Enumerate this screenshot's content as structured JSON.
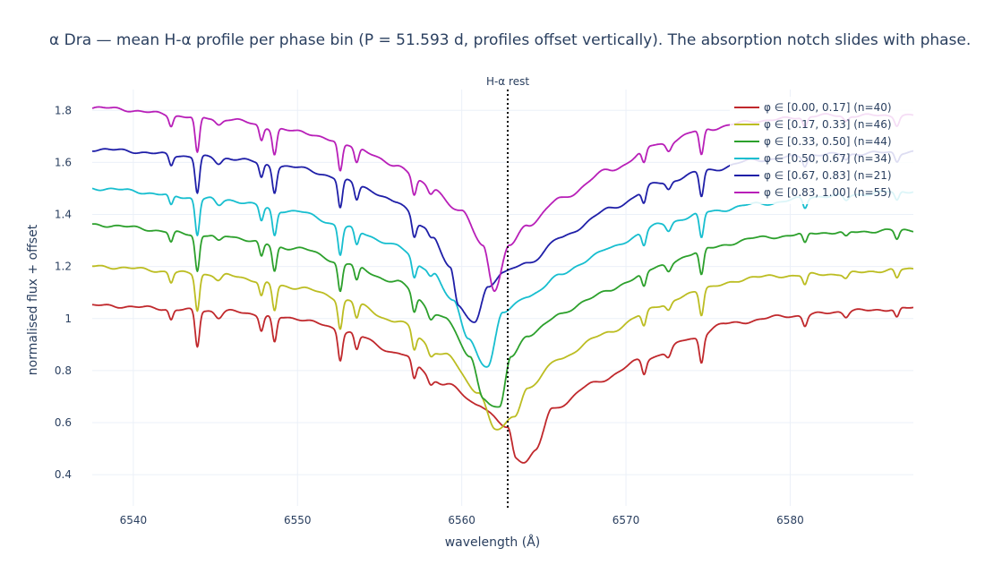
{
  "chart_data": {
    "type": "line",
    "title": "α Dra — mean H-α profile per phase bin (P = 51.593 d, profiles offset vertically). The absorption notch slides with phase.",
    "xlabel": "wavelength (Å)",
    "ylabel": "normalised flux + offset",
    "xlim": [
      6537.5,
      6587.5
    ],
    "ylim": [
      0.28,
      1.88
    ],
    "xticks": [
      6540,
      6550,
      6560,
      6570,
      6580
    ],
    "yticks": [
      0.4,
      0.6,
      0.8,
      1,
      1.2,
      1.4,
      1.6,
      1.8
    ],
    "xtick_labels": [
      "6540",
      "6550",
      "6560",
      "6570",
      "6580"
    ],
    "ytick_labels": [
      "0.4",
      "0.6",
      "0.8",
      "1",
      "1.2",
      "1.4",
      "1.6",
      "1.8"
    ],
    "grid": true,
    "legend_position": "top-right",
    "annotation": {
      "label": "H-α rest",
      "x": 6562.8,
      "style": "dotted vertical line"
    },
    "telluric_lines": [
      {
        "x": 6542.3,
        "depth": 0.04,
        "width": 0.12
      },
      {
        "x": 6543.9,
        "depth": 0.14,
        "width": 0.13
      },
      {
        "x": 6545.2,
        "depth": 0.025,
        "width": 0.2
      },
      {
        "x": 6547.8,
        "depth": 0.055,
        "width": 0.12
      },
      {
        "x": 6548.6,
        "depth": 0.1,
        "width": 0.13
      },
      {
        "x": 6552.6,
        "depth": 0.11,
        "width": 0.13
      },
      {
        "x": 6553.6,
        "depth": 0.06,
        "width": 0.13
      },
      {
        "x": 6557.1,
        "depth": 0.07,
        "width": 0.13
      },
      {
        "x": 6558.1,
        "depth": 0.03,
        "width": 0.15
      },
      {
        "x": 6571.1,
        "depth": 0.055,
        "width": 0.13
      },
      {
        "x": 6572.6,
        "depth": 0.03,
        "width": 0.15
      },
      {
        "x": 6574.6,
        "depth": 0.1,
        "width": 0.13
      },
      {
        "x": 6580.9,
        "depth": 0.04,
        "width": 0.13
      },
      {
        "x": 6583.4,
        "depth": 0.02,
        "width": 0.15
      },
      {
        "x": 6586.5,
        "depth": 0.035,
        "width": 0.13
      }
    ],
    "series": [
      {
        "name": "φ ∈ [0.00, 0.17]  (n=40)",
        "color": "#c0282c",
        "offset": 0.0,
        "min_x": 6563.9,
        "min_y": 0.36,
        "envelope": [
          [
            6537.5,
            1.05
          ],
          [
            6545,
            1.03
          ],
          [
            6550,
            1.0
          ],
          [
            6553,
            0.95
          ],
          [
            6556,
            0.87
          ],
          [
            6559,
            0.75
          ],
          [
            6561,
            0.67
          ],
          [
            6562.8,
            0.58
          ],
          [
            6563.3,
            0.47
          ],
          [
            6564.5,
            0.5
          ],
          [
            6565.5,
            0.65
          ],
          [
            6568,
            0.75
          ],
          [
            6571,
            0.84
          ],
          [
            6574,
            0.92
          ],
          [
            6576,
            0.98
          ],
          [
            6580,
            1.01
          ],
          [
            6584,
            1.03
          ],
          [
            6587.5,
            1.04
          ]
        ]
      },
      {
        "name": "φ ∈ [0.17, 0.33]  (n=46)",
        "color": "#bcbd22",
        "offset": 0.15,
        "min_x": 6562.5,
        "min_y": 0.53,
        "envelope": [
          [
            6537.5,
            1.2
          ],
          [
            6545,
            1.17
          ],
          [
            6550,
            1.12
          ],
          [
            6553,
            1.07
          ],
          [
            6556,
            0.99
          ],
          [
            6559,
            0.86
          ],
          [
            6561,
            0.72
          ],
          [
            6562,
            0.58
          ],
          [
            6563.2,
            0.63
          ],
          [
            6564,
            0.73
          ],
          [
            6566,
            0.85
          ],
          [
            6569,
            0.95
          ],
          [
            6572,
            1.05
          ],
          [
            6575,
            1.12
          ],
          [
            6578,
            1.16
          ],
          [
            6582,
            1.17
          ],
          [
            6587.5,
            1.19
          ]
        ]
      },
      {
        "name": "φ ∈ [0.33, 0.50]  (n=44)",
        "color": "#2ca02c",
        "offset": 0.3,
        "min_x": 6561.6,
        "min_y": 0.62,
        "envelope": [
          [
            6537.5,
            1.36
          ],
          [
            6545,
            1.32
          ],
          [
            6550,
            1.27
          ],
          [
            6553,
            1.21
          ],
          [
            6556,
            1.14
          ],
          [
            6559,
            1.0
          ],
          [
            6560.5,
            0.86
          ],
          [
            6561.3,
            0.7
          ],
          [
            6562.3,
            0.66
          ],
          [
            6563,
            0.86
          ],
          [
            6564,
            0.93
          ],
          [
            6566,
            1.02
          ],
          [
            6569,
            1.11
          ],
          [
            6572,
            1.2
          ],
          [
            6575,
            1.27
          ],
          [
            6578,
            1.31
          ],
          [
            6582,
            1.33
          ],
          [
            6587.5,
            1.34
          ]
        ]
      },
      {
        "name": "φ ∈ [0.50, 0.67]  (n=34)",
        "color": "#17becf",
        "offset": 0.45,
        "min_x": 6561.0,
        "min_y": 0.77,
        "envelope": [
          [
            6537.5,
            1.5
          ],
          [
            6545,
            1.46
          ],
          [
            6550,
            1.41
          ],
          [
            6553,
            1.35
          ],
          [
            6556,
            1.28
          ],
          [
            6558,
            1.19
          ],
          [
            6559.5,
            1.07
          ],
          [
            6560.4,
            0.93
          ],
          [
            6561.6,
            0.82
          ],
          [
            6562.5,
            1.03
          ],
          [
            6564,
            1.08
          ],
          [
            6566,
            1.17
          ],
          [
            6569,
            1.27
          ],
          [
            6572,
            1.36
          ],
          [
            6575,
            1.41
          ],
          [
            6578,
            1.44
          ],
          [
            6582,
            1.47
          ],
          [
            6587.5,
            1.49
          ]
        ]
      },
      {
        "name": "φ ∈ [0.67, 0.83]  (n=21)",
        "color": "#1f1fa8",
        "offset": 0.6,
        "min_x": 6560.2,
        "min_y": 0.93,
        "envelope": [
          [
            6537.5,
            1.65
          ],
          [
            6545,
            1.62
          ],
          [
            6550,
            1.58
          ],
          [
            6553,
            1.53
          ],
          [
            6556,
            1.45
          ],
          [
            6558,
            1.34
          ],
          [
            6559.3,
            1.2
          ],
          [
            6559.8,
            1.07
          ],
          [
            6560.8,
            0.99
          ],
          [
            6561.6,
            1.12
          ],
          [
            6562.5,
            1.18
          ],
          [
            6564,
            1.21
          ],
          [
            6566,
            1.31
          ],
          [
            6569,
            1.42
          ],
          [
            6572,
            1.52
          ],
          [
            6575,
            1.57
          ],
          [
            6578,
            1.61
          ],
          [
            6582,
            1.63
          ],
          [
            6587.5,
            1.64
          ]
        ]
      },
      {
        "name": "φ ∈ [0.83, 1.00]  (n=55)",
        "color": "#b81fb8",
        "offset": 0.75,
        "min_x": 6562.0,
        "min_y": 1.11,
        "envelope": [
          [
            6537.5,
            1.81
          ],
          [
            6545,
            1.77
          ],
          [
            6550,
            1.72
          ],
          [
            6553,
            1.67
          ],
          [
            6556,
            1.59
          ],
          [
            6558,
            1.51
          ],
          [
            6560,
            1.41
          ],
          [
            6561.3,
            1.28
          ],
          [
            6562,
            1.11
          ],
          [
            6562.9,
            1.28
          ],
          [
            6564,
            1.36
          ],
          [
            6566,
            1.46
          ],
          [
            6569,
            1.57
          ],
          [
            6572,
            1.67
          ],
          [
            6575,
            1.73
          ],
          [
            6578,
            1.76
          ],
          [
            6582,
            1.78
          ],
          [
            6587.5,
            1.78
          ]
        ]
      }
    ]
  }
}
